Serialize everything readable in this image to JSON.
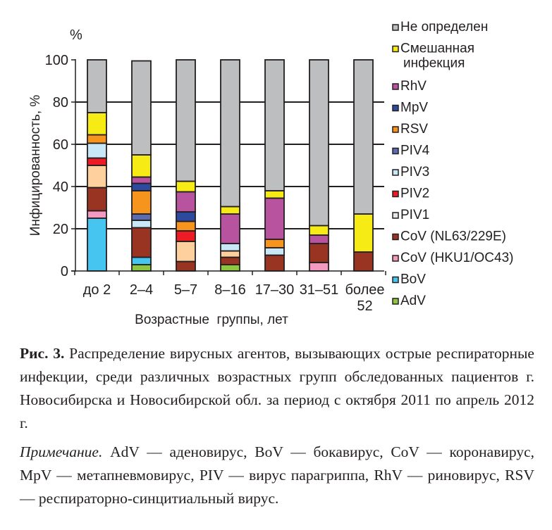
{
  "chart_data": {
    "type": "bar",
    "stacked": true,
    "title": "",
    "ylabel": "Инфицированность, %",
    "y_unit_label": "%",
    "xlabel": "Возрастные  группы, лет",
    "ylim": [
      0,
      100
    ],
    "yticks": [
      0,
      20,
      40,
      60,
      80,
      100
    ],
    "grid": "horizontal",
    "legend_position": "right",
    "categories": [
      "до 2",
      "2–4",
      "5–7",
      "8–16",
      "17–30",
      "31–51",
      "более 52"
    ],
    "category_lines": [
      [
        "до 2"
      ],
      [
        "2–4"
      ],
      [
        "5–7"
      ],
      [
        "8–16"
      ],
      [
        "17–30"
      ],
      [
        "31–51"
      ],
      [
        "более",
        "52"
      ]
    ],
    "series": [
      {
        "name": "AdV",
        "color": "#8dc63f",
        "values": [
          0,
          3,
          0,
          3,
          0,
          0,
          0
        ]
      },
      {
        "name": "BoV",
        "color": "#45c5ef",
        "values": [
          25,
          3.5,
          0,
          0,
          0,
          0,
          0
        ]
      },
      {
        "name": "CoV (HKU1/OC43)",
        "color": "#f49ac1",
        "values": [
          3.5,
          0,
          0,
          0,
          0,
          4,
          0
        ]
      },
      {
        "name": "CoV (NL63/229E)",
        "color": "#993322",
        "values": [
          11,
          14,
          4.5,
          3.5,
          7.5,
          9,
          9
        ]
      },
      {
        "name": "PIV1",
        "color": "#fdd09e",
        "values": [
          10.5,
          0,
          9.5,
          3,
          0,
          0,
          0
        ]
      },
      {
        "name": "PIV2",
        "color": "#ec1c24",
        "values": [
          3.5,
          0,
          5,
          0,
          0,
          0,
          0
        ]
      },
      {
        "name": "PIV3",
        "color": "#c8e8f8",
        "values": [
          7,
          3.5,
          0,
          3.5,
          3.5,
          0,
          0
        ]
      },
      {
        "name": "PIV4",
        "color": "#5b6cb2",
        "values": [
          0,
          3,
          0,
          0,
          0,
          0,
          0
        ]
      },
      {
        "name": "RSV",
        "color": "#f7941d",
        "values": [
          4,
          11,
          4.5,
          0,
          4,
          0,
          0
        ]
      },
      {
        "name": "MpV",
        "color": "#2e4a9e",
        "values": [
          0,
          3.5,
          4.5,
          0,
          0,
          0,
          0
        ]
      },
      {
        "name": "RhV",
        "color": "#b8539f",
        "values": [
          0,
          3,
          9.5,
          14,
          19.5,
          4,
          0
        ]
      },
      {
        "name": "Смешанная инфекция",
        "color": "#f6eb14",
        "values": [
          10.5,
          10.5,
          5,
          3.5,
          3.5,
          4.5,
          18
        ]
      },
      {
        "name": "Не определен",
        "color": "#bcbec0",
        "values": [
          25,
          44.5,
          57.5,
          69.5,
          62,
          78.5,
          73
        ]
      }
    ],
    "legend": [
      {
        "lines": [
          "Не определен"
        ],
        "color": "#bcbec0"
      },
      {
        "lines": [
          "Смешанная",
          "инфекция"
        ],
        "color": "#f6eb14"
      },
      {
        "lines": [
          "RhV"
        ],
        "color": "#b8539f"
      },
      {
        "lines": [
          "MpV"
        ],
        "color": "#2e4a9e"
      },
      {
        "lines": [
          "RSV"
        ],
        "color": "#f7941d"
      },
      {
        "lines": [
          "PIV4"
        ],
        "color": "#5b6cb2"
      },
      {
        "lines": [
          "PIV3"
        ],
        "color": "#c8e8f8"
      },
      {
        "lines": [
          "PIV2"
        ],
        "color": "#ec1c24"
      },
      {
        "lines": [
          "PIV1"
        ],
        "color": "#e6e7e8"
      },
      {
        "lines": [
          "CoV (NL63/229E)"
        ],
        "color": "#993322"
      },
      {
        "lines": [
          "CoV (HKU1/OC43)"
        ],
        "color": "#f49ac1"
      },
      {
        "lines": [
          "BoV"
        ],
        "color": "#45c5ef"
      },
      {
        "lines": [
          "AdV"
        ],
        "color": "#8dc63f"
      }
    ]
  },
  "caption": {
    "figure_label": "Рис. 3.",
    "text": " Распределение вирусных агентов, вызывающих острые респираторные инфекции, среди различных возрастных групп обследованных пациентов г. Новосибирска и Новосибирской обл. за период с октября 2011 по апрель 2012 г."
  },
  "note": {
    "label": "Примечание.",
    "text": " AdV — аденовирус, BoV — бокавирус, CoV — коронавирус, MpV — метапневмовирус, PIV — вирус парагриппа, RhV — риновирус, RSV — респираторно-синцитиальный вирус."
  }
}
